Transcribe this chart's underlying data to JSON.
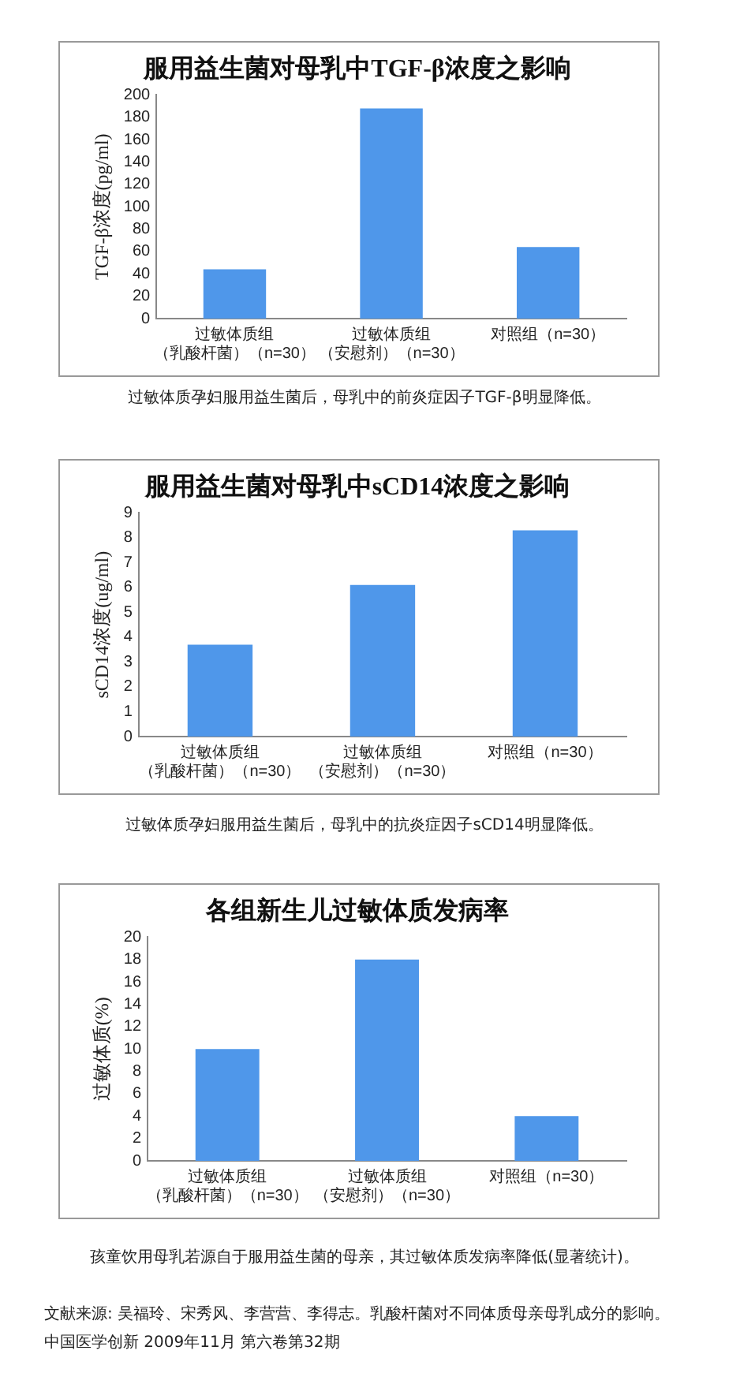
{
  "chart_data": [
    {
      "type": "bar",
      "title": "服用益生菌对母乳中TGF-β浓度之影响",
      "ylabel": "TGF-β浓度(pg/ml)",
      "categories": [
        "过敏体质组（乳酸杆菌）（n=30）",
        "过敏体质组（安慰剂）（n=30）",
        "对照组（n=30）"
      ],
      "values": [
        44,
        188,
        64
      ],
      "color": "#4f97ea",
      "ylim": [
        0,
        200
      ],
      "yticks": [
        0,
        20,
        40,
        60,
        80,
        100,
        120,
        140,
        160,
        180,
        200
      ],
      "grid": false,
      "annotations": [
        "过敏体质孕妇服用益生菌后，母乳中的前炎症因子TGF-β明显降低。"
      ]
    },
    {
      "type": "bar",
      "title": "服用益生菌对母乳中sCD14浓度之影响",
      "ylabel": "sCD14浓度(ug/ml)",
      "categories": [
        "过敏体质组（乳酸杆菌）（n=30）",
        "过敏体质组（安慰剂）（n=30）",
        "对照组（n=30）"
      ],
      "values": [
        3.7,
        6.1,
        8.3
      ],
      "color": "#4f97ea",
      "ylim": [
        0,
        9
      ],
      "yticks": [
        0,
        1,
        2,
        3,
        4,
        5,
        6,
        7,
        8,
        9
      ],
      "grid": false,
      "annotations": [
        "过敏体质孕妇服用益生菌后，母乳中的抗炎症因子sCD14明显降低。"
      ]
    },
    {
      "type": "bar",
      "title": "各组新生儿过敏体质发病率",
      "ylabel": "过敏体质(%)",
      "categories": [
        "过敏体质组（乳酸杆菌）（n=30）",
        "过敏体质组（安慰剂）（n=30）",
        "对照组（n=30）"
      ],
      "values": [
        10,
        18,
        4
      ],
      "color": "#4f97ea",
      "ylim": [
        0,
        20
      ],
      "yticks": [
        0,
        2,
        4,
        6,
        8,
        10,
        12,
        14,
        16,
        18,
        20
      ],
      "grid": false,
      "annotations": [
        "孩童饮用母乳若源自于服用益生菌的母亲，其过敏体质发病率降低(显著统计)。",
        "文献来源: 吴福玲、宋秀风、李营营、李得志。乳酸杆菌对不同体质母亲母乳成分的影响。",
        "中国医学创新 2009年11月  第六卷第32期"
      ]
    }
  ]
}
